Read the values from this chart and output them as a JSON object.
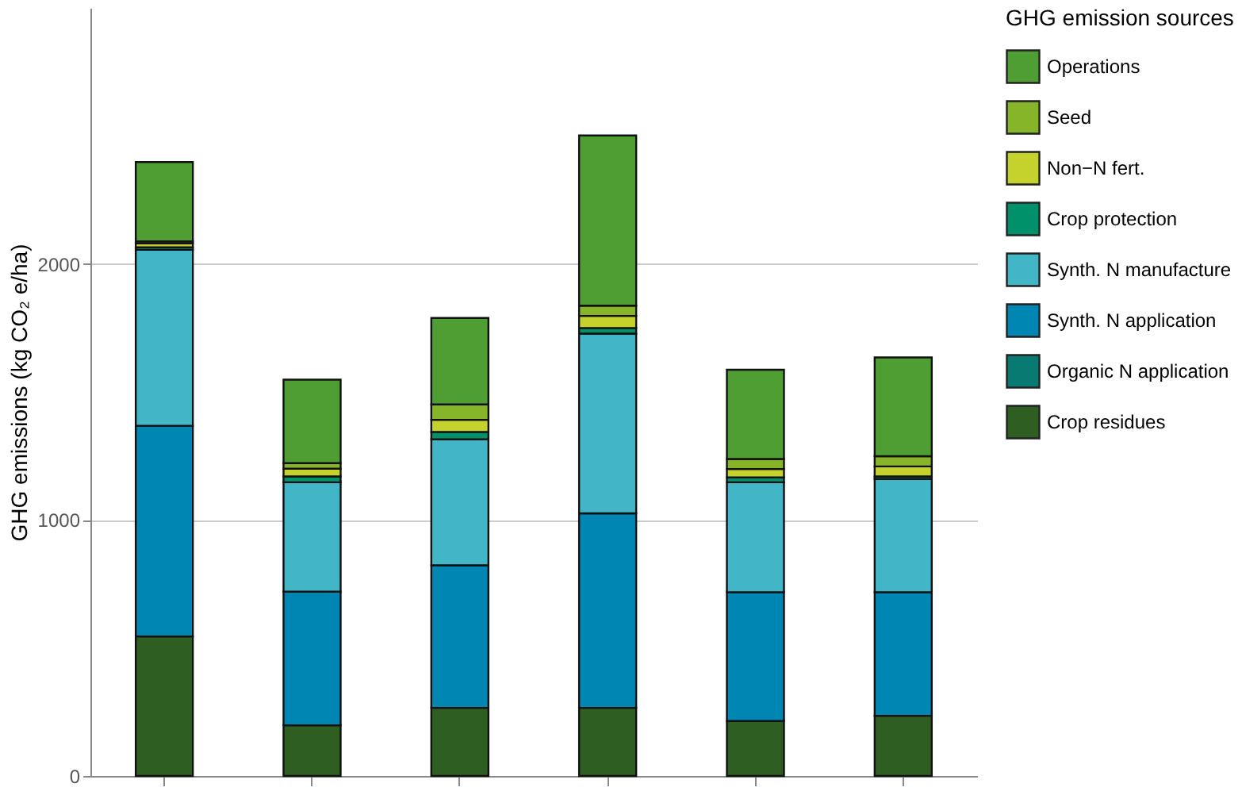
{
  "chart_data": {
    "type": "bar",
    "stacked": true,
    "ylabel": "GHG emissions (kg CO₂ e/ha)",
    "legend_title": "GHG emission sources",
    "legend": "right",
    "grid": "y",
    "tick_labels": "y",
    "categories": [
      null,
      null,
      null,
      null,
      null,
      null
    ],
    "ylim": [
      0,
      3000
    ],
    "yticks": [
      0,
      1000,
      2000
    ],
    "series": [
      {
        "name": "Crop residues",
        "color": "#2f5e22",
        "values": [
          545,
          198,
          266,
          266,
          215,
          235
        ]
      },
      {
        "name": "Organic N application",
        "color": "#087a72",
        "values": [
          0,
          0,
          0,
          0,
          0,
          0
        ]
      },
      {
        "name": "Synth. N application",
        "color": "#0086b3",
        "values": [
          823,
          522,
          557,
          760,
          503,
          483
        ]
      },
      {
        "name": "Synth. N manufacture",
        "color": "#42b5c6",
        "values": [
          687,
          427,
          492,
          702,
          429,
          442
        ]
      },
      {
        "name": "Crop protection",
        "color": "#00906a",
        "values": [
          10,
          23,
          29,
          22,
          19,
          10
        ]
      },
      {
        "name": "Non−N fert.",
        "color": "#c5d22e",
        "values": [
          15,
          30,
          47,
          47,
          33,
          39
        ]
      },
      {
        "name": "Seed",
        "color": "#86b52a",
        "values": [
          8,
          22,
          60,
          40,
          39,
          40
        ]
      },
      {
        "name": "Operations",
        "color": "#4f9e34",
        "values": [
          310,
          326,
          338,
          665,
          349,
          386
        ]
      }
    ]
  }
}
